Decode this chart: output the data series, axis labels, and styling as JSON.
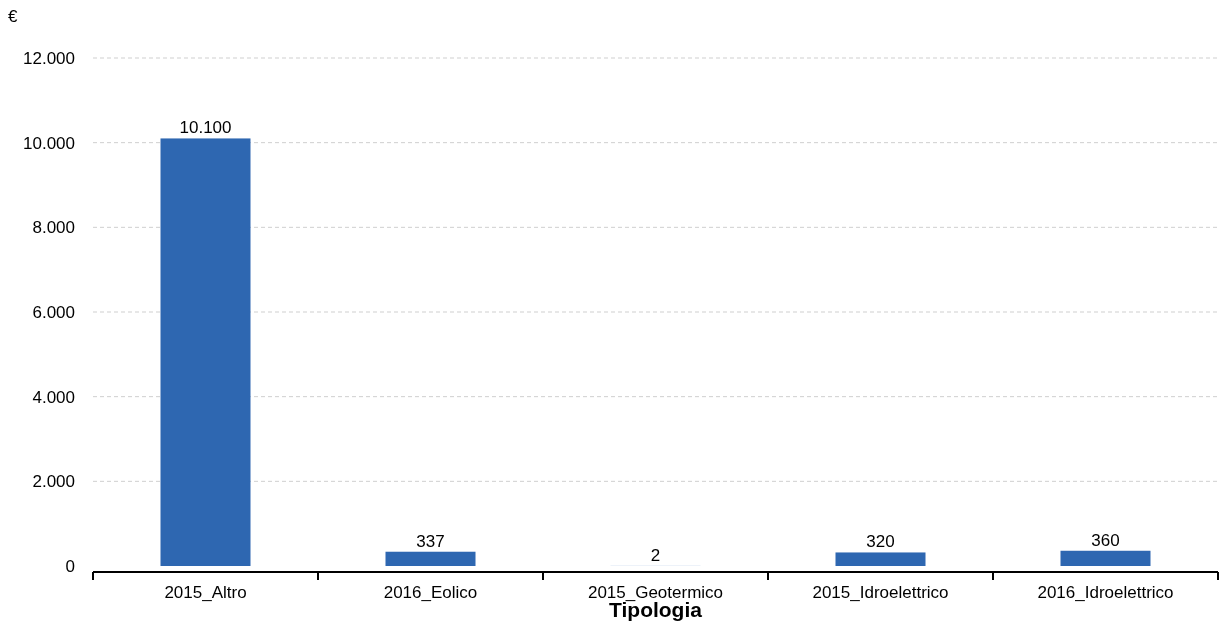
{
  "chart_data": {
    "type": "bar",
    "ylabel": "€",
    "xlabel": "Tipologia",
    "categories": [
      "2015_Altro",
      "2016_Eolico",
      "2015_Geotermico",
      "2015_Idroelettrico",
      "2016_Idroelettrico"
    ],
    "values": [
      10100,
      337,
      2,
      320,
      360
    ],
    "value_labels": [
      "10.100",
      "337",
      "2",
      "320",
      "360"
    ],
    "color": "#2e67b1",
    "ylim": [
      0,
      12000
    ],
    "yticks": [
      {
        "value": 0,
        "label": "0"
      },
      {
        "value": 2000,
        "label": "2.000"
      },
      {
        "value": 4000,
        "label": "4.000"
      },
      {
        "value": 6000,
        "label": "6.000"
      },
      {
        "value": 8000,
        "label": "8.000"
      },
      {
        "value": 10000,
        "label": "10.000"
      },
      {
        "value": 12000,
        "label": "12.000"
      }
    ],
    "grid": "y"
  }
}
